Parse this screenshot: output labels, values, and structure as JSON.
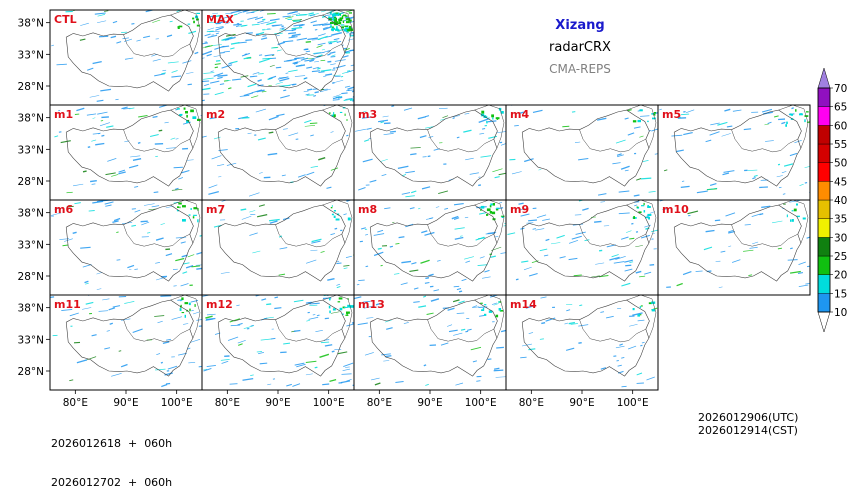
{
  "header": {
    "region": "Xizang",
    "product": "radarCRX",
    "model": "CMA-REPS"
  },
  "footer": {
    "init_utc": "2026012618  +  060h",
    "init_cst": "2026012702  +  060h",
    "valid_utc": "2026012906(UTC)",
    "valid_cst": "2026012914(CST)"
  },
  "colors": {
    "panel_label": "#e0101a",
    "frame": "#000000",
    "border_line": "#404040"
  },
  "chart_data": {
    "type": "heatmap",
    "title": "Xizang radarCRX CMA-REPS",
    "variable": "radarCRX",
    "xlabel": "",
    "ylabel": "",
    "xticks": [
      "80°E",
      "90°E",
      "100°E"
    ],
    "yticks": [
      "38°N",
      "33°N",
      "28°N"
    ],
    "xlim": [
      75,
      105
    ],
    "ylim": [
      25,
      40
    ],
    "xtick_values": [
      80,
      90,
      100
    ],
    "ytick_values": [
      38,
      33,
      28
    ],
    "panels": [
      {
        "label": "CTL",
        "coverage": 0.12
      },
      {
        "label": "MAX",
        "coverage": 0.75
      },
      {
        "label": "m1",
        "coverage": 0.14
      },
      {
        "label": "m2",
        "coverage": 0.1
      },
      {
        "label": "m3",
        "coverage": 0.15
      },
      {
        "label": "m4",
        "coverage": 0.1
      },
      {
        "label": "m5",
        "coverage": 0.14
      },
      {
        "label": "m6",
        "coverage": 0.16
      },
      {
        "label": "m7",
        "coverage": 0.1
      },
      {
        "label": "m8",
        "coverage": 0.18
      },
      {
        "label": "m9",
        "coverage": 0.16
      },
      {
        "label": "m10",
        "coverage": 0.1
      },
      {
        "label": "m11",
        "coverage": 0.14
      },
      {
        "label": "m12",
        "coverage": 0.2
      },
      {
        "label": "m13",
        "coverage": 0.14
      },
      {
        "label": "m14",
        "coverage": 0.1
      }
    ],
    "colorbar": {
      "levels": [
        10,
        15,
        20,
        25,
        30,
        35,
        40,
        45,
        50,
        55,
        60,
        65,
        70
      ],
      "colors": [
        "#1e96f0",
        "#00dcdc",
        "#10c010",
        "#108010",
        "#f0f000",
        "#e6c000",
        "#ff8c00",
        "#ff0000",
        "#d40000",
        "#c00000",
        "#ff00f0",
        "#9010c0",
        "#a080e0"
      ],
      "under_color": "#ffffff",
      "extend": "both"
    }
  }
}
